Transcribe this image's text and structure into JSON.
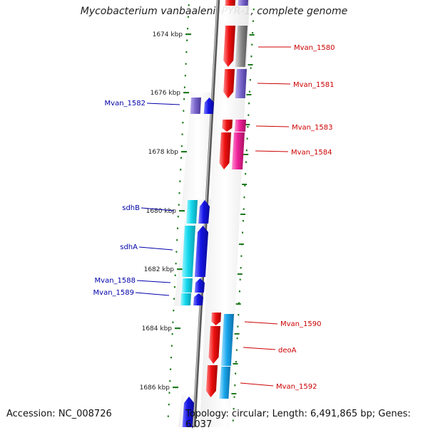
{
  "title": "Mycobacterium vanbaalenii PYR-1, complete genome",
  "footer": {
    "accession": "Accession: NC_008726",
    "summary": "Topology: circular; Length: 6,491,865 bp; Genes: 6,037"
  },
  "colors": {
    "plus_label": "#cc0000",
    "minus_label": "#0000aa",
    "tick": "#1f7a1f",
    "red": "#ee1111",
    "grey": "#888888",
    "blue": "#1515e6",
    "cyan": "#16d9ee",
    "violet": "#7763c9",
    "magenta": "#ee2299",
    "skyblue": "#1aa7ee"
  },
  "ticks": [
    {
      "label": "1674 kbp"
    },
    {
      "label": "1676 kbp"
    },
    {
      "label": "1678 kbp"
    },
    {
      "label": "1680 kbp"
    },
    {
      "label": "1682 kbp"
    },
    {
      "label": "1684 kbp"
    },
    {
      "label": "1686 kbp"
    }
  ],
  "genes": [
    {
      "label": "Mvan_1580",
      "strand": "plus"
    },
    {
      "label": "Mvan_1581",
      "strand": "plus"
    },
    {
      "label": "Mvan_1582",
      "strand": "minus"
    },
    {
      "label": "Mvan_1583",
      "strand": "plus"
    },
    {
      "label": "Mvan_1584",
      "strand": "plus"
    },
    {
      "label": "sdhB",
      "strand": "minus"
    },
    {
      "label": "sdhA",
      "strand": "minus"
    },
    {
      "label": "Mvan_1588",
      "strand": "minus"
    },
    {
      "label": "Mvan_1589",
      "strand": "minus"
    },
    {
      "label": "Mvan_1590",
      "strand": "plus"
    },
    {
      "label": "deoA",
      "strand": "plus"
    },
    {
      "label": "Mvan_1592",
      "strand": "plus"
    }
  ]
}
